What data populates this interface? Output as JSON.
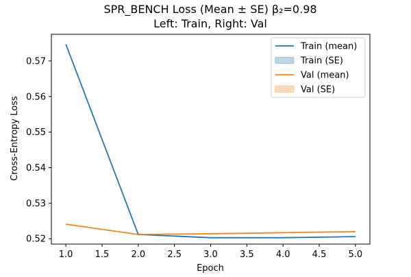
{
  "chart_data": {
    "type": "line",
    "title_line1": "SPR_BENCH Loss (Mean ± SE)  β₂=0.98",
    "title_line2": "Left: Train, Right: Val",
    "xlabel": "Epoch",
    "ylabel": "Cross-Entropy Loss",
    "xlim": [
      0.8,
      5.2
    ],
    "ylim": [
      0.5185,
      0.5775
    ],
    "x": [
      1,
      2,
      3,
      4,
      5
    ],
    "xticks": [
      1.0,
      1.5,
      2.0,
      2.5,
      3.0,
      3.5,
      4.0,
      4.5,
      5.0
    ],
    "xtick_labels": [
      "1.0",
      "1.5",
      "2.0",
      "2.5",
      "3.0",
      "3.5",
      "4.0",
      "4.5",
      "5.0"
    ],
    "yticks": [
      0.52,
      0.53,
      0.54,
      0.55,
      0.56,
      0.57
    ],
    "ytick_labels": [
      "0.52",
      "0.53",
      "0.54",
      "0.55",
      "0.56",
      "0.57"
    ],
    "grid": false,
    "legend_position": "top-right",
    "series": [
      {
        "name": "Train (mean)",
        "kind": "line",
        "color": "#1f77b4",
        "values": [
          0.5747,
          0.5212,
          0.5203,
          0.5203,
          0.5206
        ]
      },
      {
        "name": "Train (SE)",
        "kind": "band",
        "color": "#1f77b4"
      },
      {
        "name": "Val (mean)",
        "kind": "line",
        "color": "#ff7f0e",
        "values": [
          0.5241,
          0.5212,
          0.5214,
          0.5217,
          0.522
        ]
      },
      {
        "name": "Val (SE)",
        "kind": "band",
        "color": "#ff7f0e"
      }
    ]
  }
}
